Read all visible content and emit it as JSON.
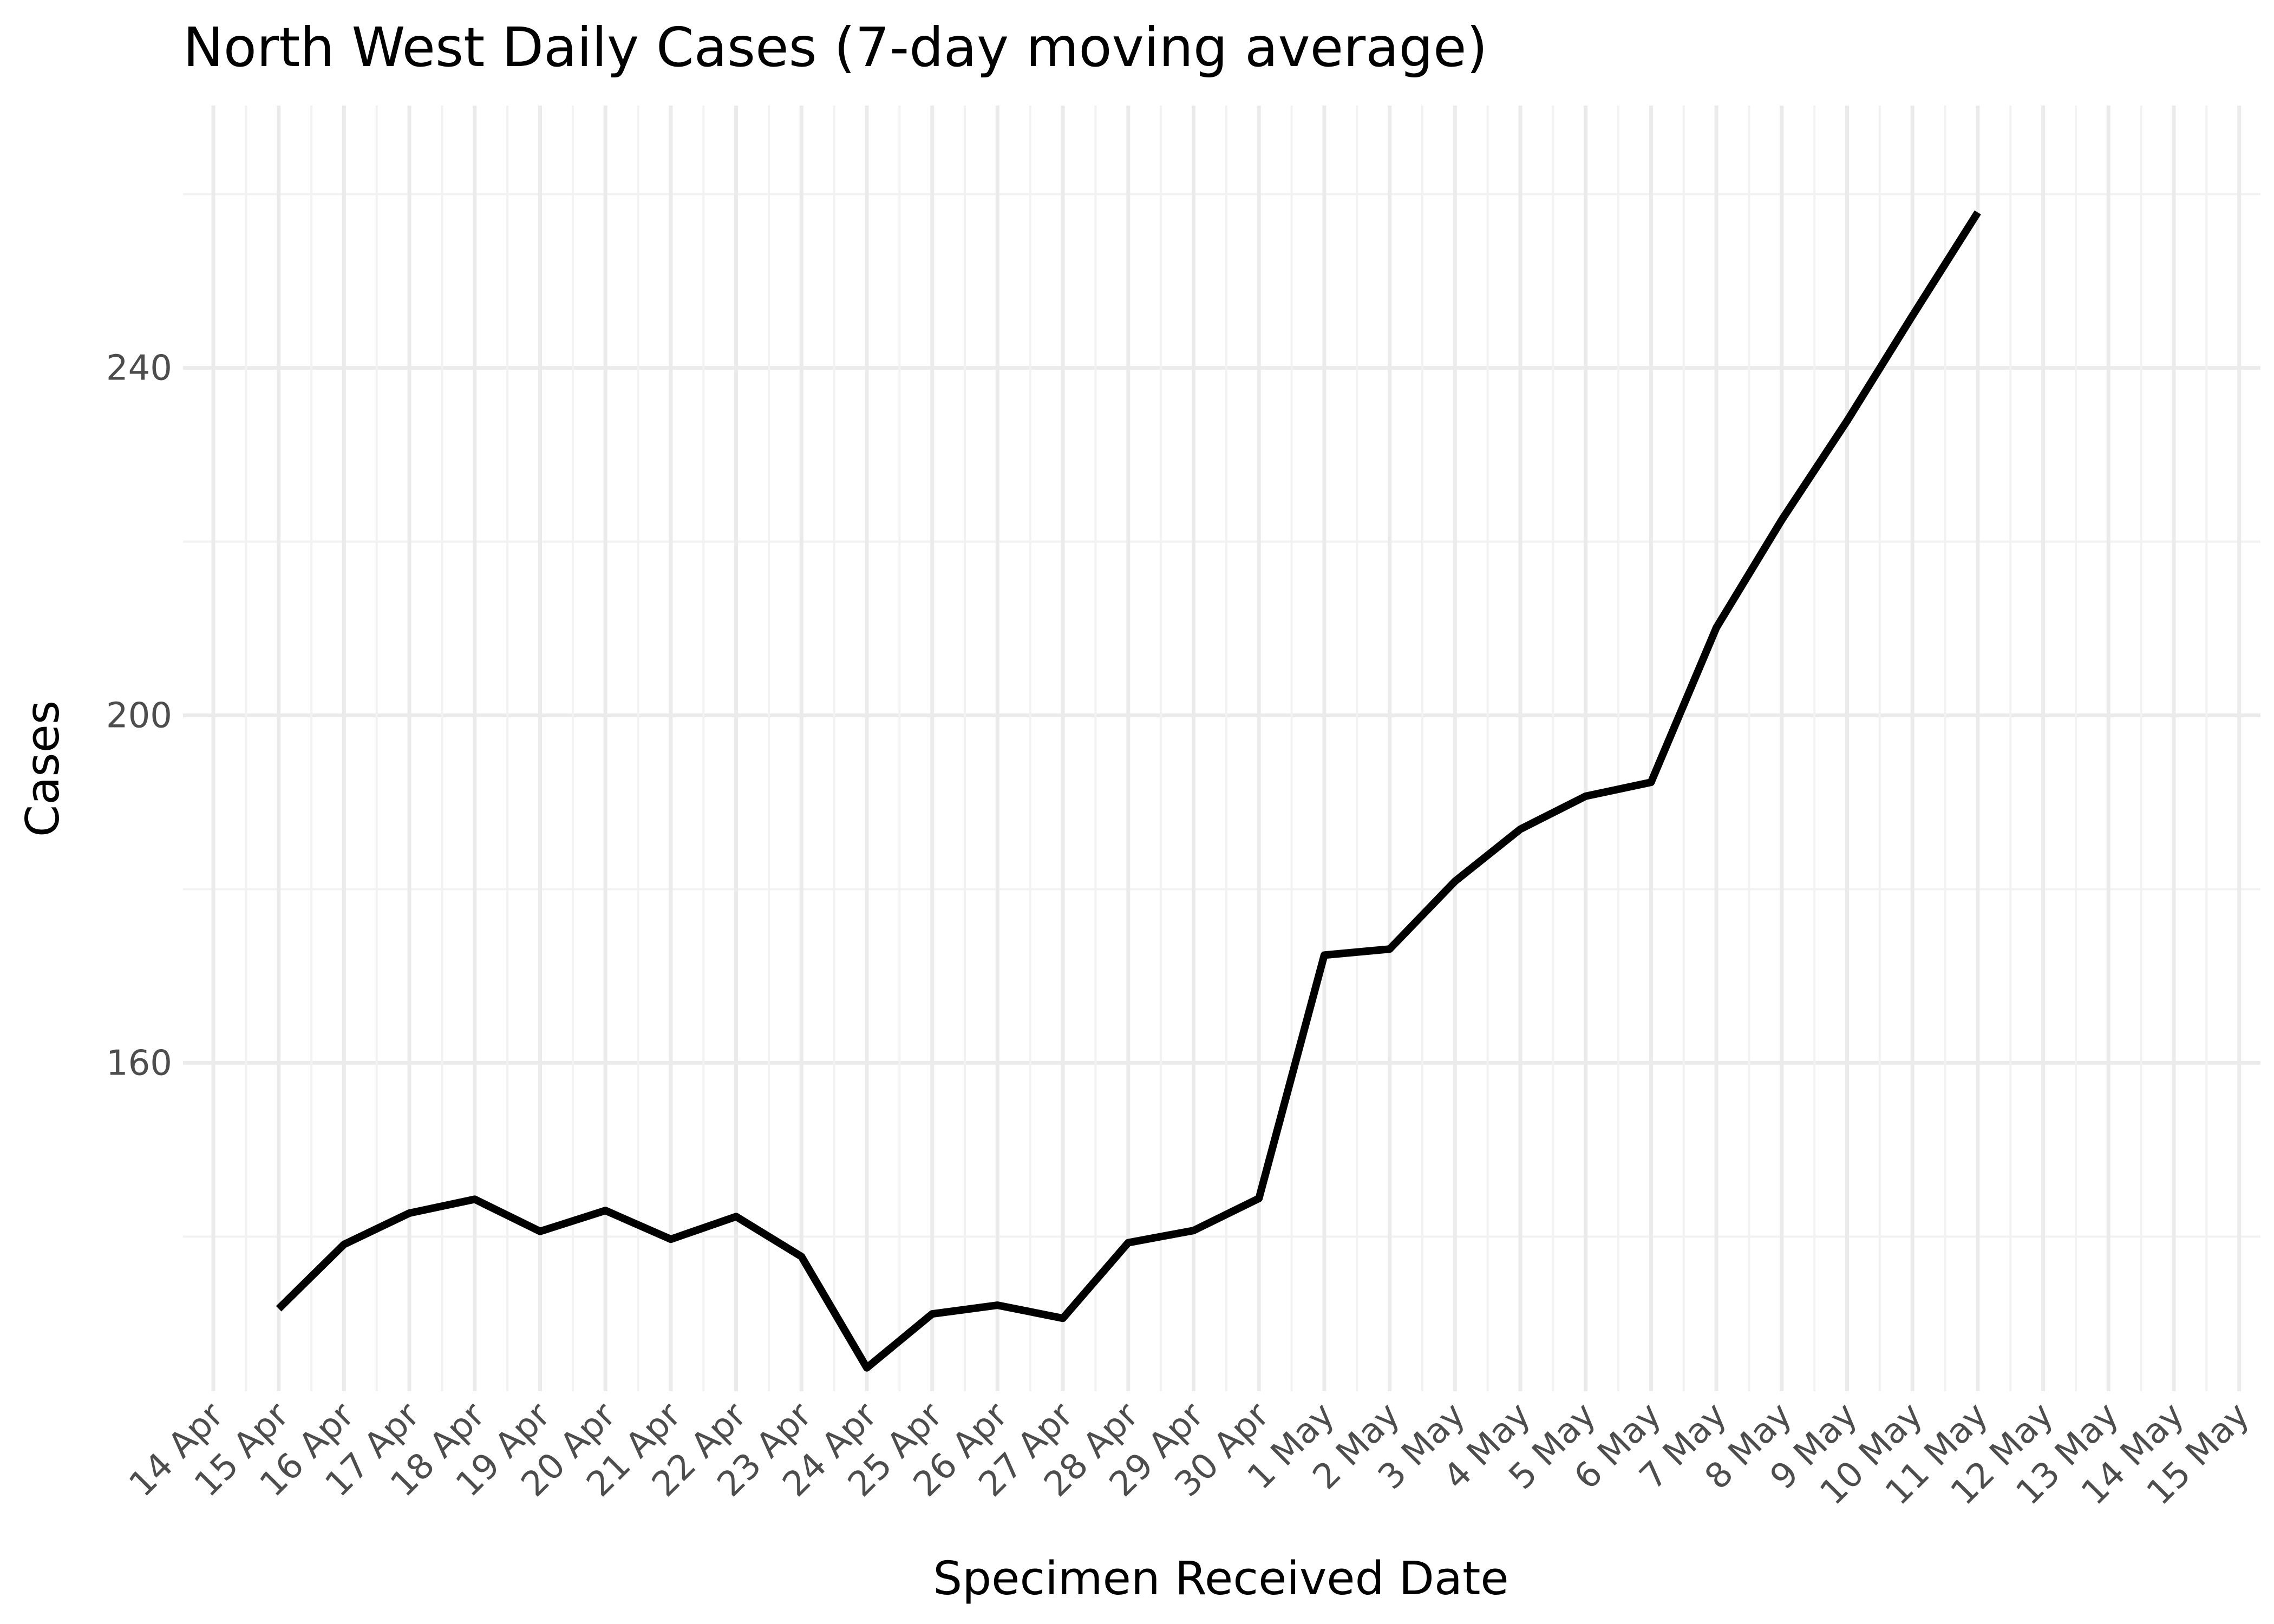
{
  "chart_data": {
    "type": "line",
    "title": "North West Daily Cases (7-day moving average)",
    "xlabel": "Specimen Received Date",
    "ylabel": "Cases",
    "x_tick_labels": [
      "14 Apr",
      "15 Apr",
      "16 Apr",
      "17 Apr",
      "18 Apr",
      "19 Apr",
      "20 Apr",
      "21 Apr",
      "22 Apr",
      "23 Apr",
      "24 Apr",
      "25 Apr",
      "26 Apr",
      "27 Apr",
      "28 Apr",
      "29 Apr",
      "30 Apr",
      "1 May",
      "2 May",
      "3 May",
      "4 May",
      "5 May",
      "6 May",
      "7 May",
      "8 May",
      "9 May",
      "10 May",
      "11 May",
      "12 May",
      "13 May",
      "14 May",
      "15 May"
    ],
    "y_ticks": [
      160,
      200,
      240
    ],
    "y_tick_labels": [
      "160",
      "200",
      "240"
    ],
    "ylim": [
      122.2,
      270.2
    ],
    "grid": true,
    "series": [
      {
        "x": [
          "15 Apr",
          "16 Apr",
          "17 Apr",
          "18 Apr",
          "19 Apr",
          "20 Apr",
          "21 Apr",
          "22 Apr",
          "23 Apr",
          "24 Apr",
          "25 Apr",
          "26 Apr",
          "27 Apr",
          "28 Apr",
          "29 Apr",
          "30 Apr",
          "1 May",
          "2 May",
          "3 May",
          "4 May",
          "5 May",
          "6 May",
          "7 May",
          "8 May",
          "9 May",
          "10 May",
          "11 May"
        ],
        "values": [
          131.7,
          139.1,
          142.7,
          144.3,
          140.6,
          143.0,
          139.7,
          142.3,
          137.7,
          124.9,
          131.1,
          132.1,
          130.6,
          139.3,
          140.7,
          144.4,
          172.4,
          173.1,
          180.9,
          186.9,
          190.7,
          192.3,
          210.1,
          222.5,
          233.9,
          246.0,
          257.9
        ],
        "color": "#000000"
      }
    ]
  }
}
